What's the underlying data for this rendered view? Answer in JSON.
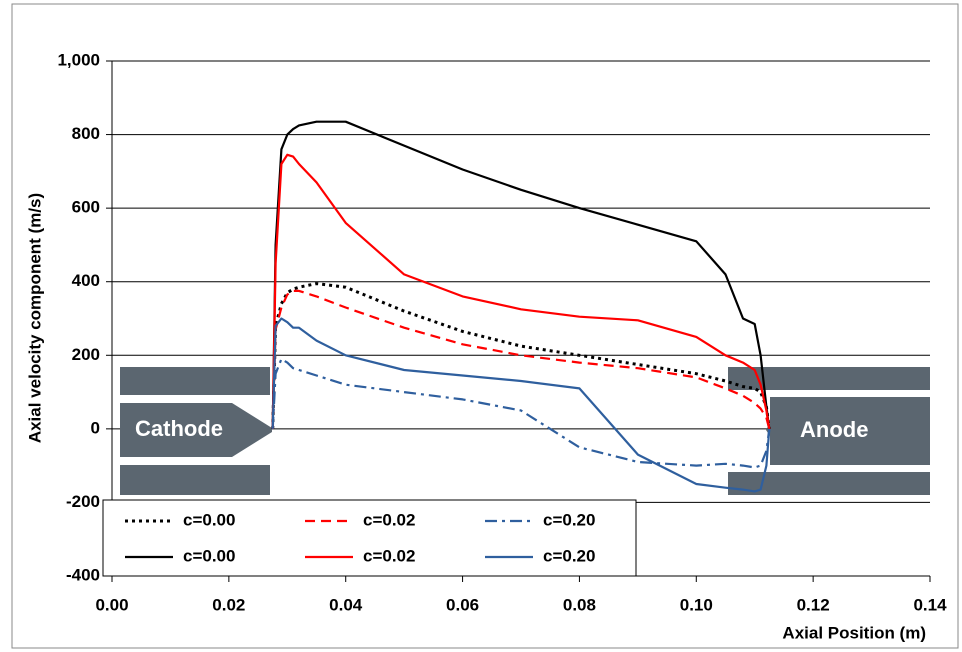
{
  "chart_data": {
    "type": "line",
    "x_label": "Axial Position (m)",
    "y_label": "Axial velocity component (m/s)",
    "x": [
      0.0275,
      0.028,
      0.029,
      0.03,
      0.031,
      0.032,
      0.035,
      0.04,
      0.05,
      0.06,
      0.07,
      0.08,
      0.09,
      0.1,
      0.105,
      0.108,
      0.11,
      0.111,
      0.112,
      0.1125
    ],
    "series": [
      {
        "name": "c=0.00",
        "color": "#000000",
        "dash": "dotted",
        "values": [
          0,
          280,
          340,
          370,
          380,
          385,
          395,
          385,
          320,
          265,
          225,
          200,
          175,
          150,
          130,
          115,
          110,
          100,
          60,
          0
        ]
      },
      {
        "name": "c=0.02",
        "color": "#ff0000",
        "dash": "dashed",
        "values": [
          0,
          270,
          330,
          365,
          375,
          375,
          360,
          330,
          275,
          230,
          200,
          180,
          165,
          140,
          110,
          90,
          70,
          55,
          30,
          0
        ]
      },
      {
        "name": "c=0.20",
        "color": "#2f5f9e",
        "dash": "dashdot",
        "values": [
          0,
          150,
          190,
          180,
          165,
          160,
          145,
          120,
          100,
          80,
          50,
          -50,
          -90,
          -100,
          -95,
          -100,
          -105,
          -100,
          -60,
          0
        ]
      },
      {
        "name": "c=0.00",
        "color": "#000000",
        "dash": "solid",
        "values": [
          0,
          500,
          760,
          800,
          815,
          825,
          835,
          835,
          770,
          705,
          650,
          600,
          555,
          510,
          420,
          300,
          285,
          200,
          60,
          0
        ]
      },
      {
        "name": "c=0.02",
        "color": "#ff0000",
        "dash": "solid",
        "values": [
          0,
          450,
          720,
          745,
          740,
          720,
          670,
          560,
          420,
          360,
          325,
          305,
          295,
          250,
          200,
          180,
          160,
          120,
          50,
          0
        ]
      },
      {
        "name": "c=0.20",
        "color": "#2f5f9e",
        "dash": "solid",
        "values": [
          0,
          280,
          300,
          290,
          275,
          275,
          240,
          200,
          160,
          145,
          130,
          110,
          -70,
          -150,
          -160,
          -165,
          -170,
          -165,
          -100,
          0
        ]
      }
    ],
    "xlim": [
      0,
      0.14
    ],
    "xticks": [
      {
        "value": 0,
        "label": "0.00"
      },
      0.02,
      0.04,
      0.06,
      0.08,
      {
        "value": 0.1,
        "label": "0.10"
      },
      0.12,
      0.14
    ],
    "ylim": [
      -400,
      1000
    ],
    "yticks": [
      -400,
      -200,
      0,
      200,
      400,
      600,
      800,
      {
        "value": 1000,
        "label": "1,000"
      }
    ],
    "grid": true,
    "legend": "lower left"
  },
  "electrodes": {
    "cathode": "Cathode",
    "anode": "Anode"
  }
}
